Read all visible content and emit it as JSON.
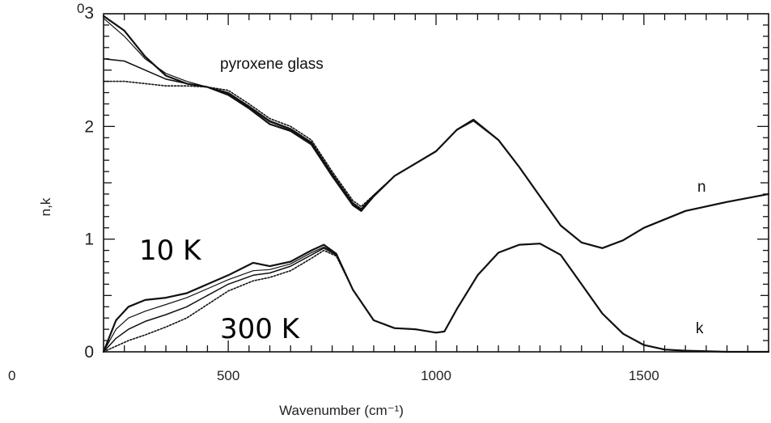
{
  "chart_data": {
    "type": "line",
    "title": "pyroxene glass",
    "xlabel": "Wavenumber (cm⁻¹)",
    "ylabel": "n,k",
    "xlim": [
      200,
      1800
    ],
    "ylim": [
      0,
      3
    ],
    "x_ticks": [
      500,
      1000,
      1500
    ],
    "y_ticks": [
      0,
      1,
      2,
      3
    ],
    "extra_tick_label": "0",
    "y_top_label": "0",
    "grid": false,
    "temperature_labels": [
      "10 K",
      "300 K"
    ],
    "curve_labels": [
      "n",
      "k"
    ],
    "series": [
      {
        "group": "n",
        "style": "solid",
        "x": [
          200,
          250,
          300,
          350,
          400,
          450,
          500,
          550,
          600,
          650,
          700,
          750,
          800,
          820,
          850,
          900,
          950,
          1000,
          1050,
          1090,
          1150,
          1200,
          1250,
          1300,
          1350,
          1400,
          1450,
          1500,
          1600,
          1700,
          1800
        ],
        "y": [
          2.98,
          2.85,
          2.62,
          2.45,
          2.38,
          2.35,
          2.28,
          2.16,
          2.02,
          1.96,
          1.84,
          1.56,
          1.3,
          1.25,
          1.38,
          1.56,
          1.67,
          1.78,
          1.97,
          2.06,
          1.88,
          1.64,
          1.38,
          1.12,
          0.97,
          0.92,
          0.99,
          1.1,
          1.25,
          1.33,
          1.4
        ]
      },
      {
        "group": "n",
        "style": "solid-thin",
        "x": [
          200,
          250,
          300,
          350,
          400,
          450,
          500,
          550,
          600,
          650,
          700,
          750,
          800,
          820,
          850,
          900,
          950,
          1000,
          1050,
          1090,
          1150,
          1200,
          1250,
          1300,
          1350,
          1400,
          1450,
          1500,
          1600,
          1700,
          1800
        ],
        "y": [
          2.96,
          2.8,
          2.6,
          2.47,
          2.4,
          2.35,
          2.29,
          2.17,
          2.04,
          1.97,
          1.85,
          1.57,
          1.31,
          1.26,
          1.38,
          1.56,
          1.67,
          1.78,
          1.97,
          2.05,
          1.88,
          1.64,
          1.38,
          1.12,
          0.97,
          0.92,
          0.99,
          1.1,
          1.25,
          1.33,
          1.4
        ]
      },
      {
        "group": "n",
        "style": "solid-flat",
        "x": [
          200,
          250,
          300,
          350,
          400,
          450,
          500,
          550,
          600,
          650,
          700,
          750,
          800,
          820,
          850,
          900,
          950,
          1000,
          1050,
          1090,
          1150,
          1200,
          1250,
          1300,
          1350,
          1400,
          1450,
          1500,
          1600,
          1700,
          1800
        ],
        "y": [
          2.6,
          2.58,
          2.5,
          2.42,
          2.38,
          2.35,
          2.3,
          2.18,
          2.05,
          1.98,
          1.86,
          1.58,
          1.32,
          1.27,
          1.39,
          1.56,
          1.67,
          1.78,
          1.97,
          2.05,
          1.88,
          1.64,
          1.38,
          1.12,
          0.97,
          0.92,
          0.99,
          1.1,
          1.25,
          1.33,
          1.4
        ]
      },
      {
        "group": "n",
        "style": "dotted",
        "x": [
          200,
          250,
          300,
          350,
          400,
          450,
          500,
          550,
          600,
          650,
          700,
          750,
          800,
          820,
          850,
          900,
          950,
          1000,
          1050,
          1090,
          1150,
          1200,
          1250,
          1300,
          1350,
          1400,
          1450,
          1500,
          1600,
          1700,
          1800
        ],
        "y": [
          2.4,
          2.4,
          2.38,
          2.36,
          2.36,
          2.35,
          2.32,
          2.2,
          2.07,
          2.0,
          1.88,
          1.6,
          1.34,
          1.29,
          1.39,
          1.56,
          1.67,
          1.78,
          1.97,
          2.05,
          1.88,
          1.64,
          1.38,
          1.12,
          0.97,
          0.92,
          0.99,
          1.1,
          1.25,
          1.33,
          1.4
        ]
      },
      {
        "group": "k",
        "style": "solid",
        "x": [
          200,
          230,
          260,
          300,
          350,
          400,
          450,
          500,
          560,
          600,
          650,
          700,
          730,
          760,
          800,
          850,
          900,
          950,
          1000,
          1020,
          1050,
          1100,
          1150,
          1200,
          1250,
          1300,
          1350,
          1400,
          1450,
          1500,
          1550,
          1600,
          1700,
          1800
        ],
        "y": [
          0.0,
          0.28,
          0.4,
          0.46,
          0.48,
          0.52,
          0.6,
          0.68,
          0.79,
          0.76,
          0.8,
          0.9,
          0.95,
          0.87,
          0.55,
          0.28,
          0.21,
          0.2,
          0.17,
          0.18,
          0.38,
          0.68,
          0.88,
          0.95,
          0.96,
          0.86,
          0.6,
          0.34,
          0.16,
          0.06,
          0.02,
          0.01,
          0.0,
          0.0
        ]
      },
      {
        "group": "k",
        "style": "solid-thin",
        "x": [
          200,
          230,
          260,
          300,
          350,
          400,
          450,
          500,
          560,
          600,
          650,
          700,
          730,
          760,
          800,
          850,
          900,
          950,
          1000,
          1020,
          1050,
          1100,
          1150,
          1200,
          1250,
          1300,
          1350,
          1400,
          1450,
          1500,
          1550,
          1600,
          1700,
          1800
        ],
        "y": [
          0.0,
          0.2,
          0.3,
          0.36,
          0.42,
          0.48,
          0.56,
          0.64,
          0.72,
          0.73,
          0.78,
          0.88,
          0.93,
          0.87,
          0.55,
          0.28,
          0.21,
          0.2,
          0.17,
          0.18,
          0.38,
          0.68,
          0.88,
          0.95,
          0.96,
          0.86,
          0.6,
          0.34,
          0.16,
          0.06,
          0.02,
          0.01,
          0.0,
          0.0
        ]
      },
      {
        "group": "k",
        "style": "solid-low",
        "x": [
          200,
          230,
          260,
          300,
          350,
          400,
          450,
          500,
          560,
          600,
          650,
          700,
          730,
          760,
          800,
          850,
          900,
          950,
          1000,
          1020,
          1050,
          1100,
          1150,
          1200,
          1250,
          1300,
          1350,
          1400,
          1450,
          1500,
          1550,
          1600,
          1700,
          1800
        ],
        "y": [
          0.0,
          0.12,
          0.2,
          0.27,
          0.33,
          0.4,
          0.5,
          0.6,
          0.68,
          0.7,
          0.76,
          0.86,
          0.92,
          0.86,
          0.55,
          0.28,
          0.21,
          0.2,
          0.17,
          0.18,
          0.38,
          0.68,
          0.88,
          0.95,
          0.96,
          0.86,
          0.6,
          0.34,
          0.16,
          0.06,
          0.02,
          0.01,
          0.0,
          0.0
        ]
      },
      {
        "group": "k",
        "style": "dotted",
        "x": [
          200,
          230,
          260,
          300,
          350,
          400,
          450,
          500,
          560,
          600,
          650,
          700,
          730,
          760,
          800,
          850,
          900,
          950,
          1000,
          1020,
          1050,
          1100,
          1150,
          1200,
          1250,
          1300,
          1350,
          1400,
          1450,
          1500,
          1550,
          1600,
          1700,
          1800
        ],
        "y": [
          0.0,
          0.05,
          0.1,
          0.15,
          0.22,
          0.3,
          0.42,
          0.54,
          0.63,
          0.66,
          0.72,
          0.83,
          0.9,
          0.85,
          0.55,
          0.28,
          0.21,
          0.2,
          0.17,
          0.18,
          0.38,
          0.68,
          0.88,
          0.95,
          0.96,
          0.86,
          0.6,
          0.34,
          0.16,
          0.06,
          0.02,
          0.01,
          0.0,
          0.0
        ]
      }
    ]
  }
}
